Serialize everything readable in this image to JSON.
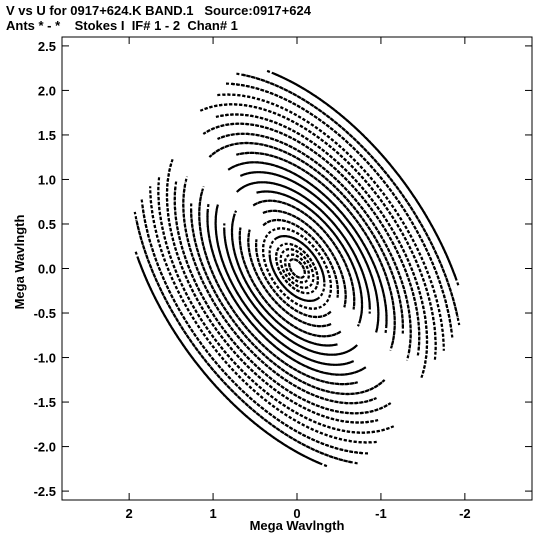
{
  "header": {
    "line1": "V vs U for 0917+624.K BAND.1   Source:0917+624",
    "line2": "Ants * - *    Stokes I  IF# 1 - 2  Chan# 1"
  },
  "chart_data": {
    "type": "scatter",
    "xlabel": "Mega Wavlngth",
    "ylabel": "Mega Wavlngth",
    "xlim": [
      2.8,
      -2.8
    ],
    "ylim": [
      -2.6,
      2.6
    ],
    "x_reversed": true,
    "grid": false,
    "legend": "none",
    "xticks": [
      2,
      1,
      0,
      -1,
      -2
    ],
    "xtick_labels": [
      "2",
      "1",
      "0",
      "-1",
      "-2"
    ],
    "yticks": [
      2.5,
      2.0,
      1.5,
      1.0,
      0.5,
      0.0,
      -0.5,
      -1.0,
      -1.5,
      -2.0,
      -2.5
    ],
    "ytick_labels": [
      "2.5",
      "2.0",
      "1.5",
      "1.0",
      "0.5",
      "0.0",
      "-0.5",
      "-1.0",
      "-1.5",
      "-2.0",
      "-2.5"
    ],
    "marker_color": "#000000",
    "tracks": [
      {
        "a": 0.12,
        "b": 0.07,
        "theta": 0.9,
        "start": 0.0,
        "end": 5.8
      },
      {
        "a": 0.18,
        "b": 0.11,
        "theta": 0.9,
        "start": 0.4,
        "end": 5.9
      },
      {
        "a": 0.25,
        "b": 0.15,
        "theta": 0.9,
        "start": 0.2,
        "end": 5.4
      },
      {
        "a": 0.32,
        "b": 0.19,
        "theta": 0.9,
        "start": 0.6,
        "end": 6.0
      },
      {
        "a": 0.42,
        "b": 0.25,
        "theta": 0.9,
        "start": 0.1,
        "end": 5.6
      },
      {
        "a": 0.52,
        "b": 0.31,
        "theta": 0.9,
        "start": 0.3,
        "end": 5.9
      },
      {
        "a": 0.63,
        "b": 0.37,
        "theta": 0.9,
        "start": 0.0,
        "end": 2.6
      },
      {
        "a": 0.63,
        "b": 0.37,
        "theta": 0.9,
        "start": 3.1,
        "end": 5.8
      },
      {
        "a": 0.75,
        "b": 0.44,
        "theta": 0.9,
        "start": 0.2,
        "end": 2.7
      },
      {
        "a": 0.75,
        "b": 0.44,
        "theta": 0.9,
        "start": 3.3,
        "end": 5.9
      },
      {
        "a": 0.88,
        "b": 0.52,
        "theta": 0.9,
        "start": 0.1,
        "end": 2.6
      },
      {
        "a": 0.88,
        "b": 0.52,
        "theta": 0.9,
        "start": 3.2,
        "end": 5.8
      },
      {
        "a": 1.0,
        "b": 0.59,
        "theta": 0.9,
        "start": 0.3,
        "end": 2.8
      },
      {
        "a": 1.0,
        "b": 0.59,
        "theta": 0.9,
        "start": 3.4,
        "end": 6.0
      },
      {
        "a": 1.12,
        "b": 0.66,
        "theta": 0.9,
        "start": 0.0,
        "end": 2.5
      },
      {
        "a": 1.12,
        "b": 0.66,
        "theta": 0.9,
        "start": 3.1,
        "end": 5.7
      },
      {
        "a": 1.25,
        "b": 0.74,
        "theta": 0.9,
        "start": 0.2,
        "end": 2.7
      },
      {
        "a": 1.25,
        "b": 0.74,
        "theta": 0.9,
        "start": 3.3,
        "end": 5.9
      },
      {
        "a": 1.38,
        "b": 0.81,
        "theta": 0.9,
        "start": 0.1,
        "end": 2.6
      },
      {
        "a": 1.38,
        "b": 0.81,
        "theta": 0.9,
        "start": 3.2,
        "end": 5.8
      },
      {
        "a": 1.5,
        "b": 0.89,
        "theta": 0.9,
        "start": 0.3,
        "end": 2.8
      },
      {
        "a": 1.5,
        "b": 0.89,
        "theta": 0.9,
        "start": 3.4,
        "end": 5.9
      },
      {
        "a": 1.63,
        "b": 0.96,
        "theta": 0.9,
        "start": 0.0,
        "end": 2.5
      },
      {
        "a": 1.63,
        "b": 0.96,
        "theta": 0.9,
        "start": 3.1,
        "end": 5.7
      },
      {
        "a": 1.75,
        "b": 1.03,
        "theta": 0.9,
        "start": 0.2,
        "end": 2.7
      },
      {
        "a": 1.75,
        "b": 1.03,
        "theta": 0.9,
        "start": 3.3,
        "end": 5.9
      },
      {
        "a": 1.88,
        "b": 1.11,
        "theta": 0.9,
        "start": 0.1,
        "end": 2.6
      },
      {
        "a": 1.88,
        "b": 1.11,
        "theta": 0.9,
        "start": 3.2,
        "end": 5.8
      },
      {
        "a": 2.0,
        "b": 1.18,
        "theta": 0.9,
        "start": 0.3,
        "end": 2.8
      },
      {
        "a": 2.0,
        "b": 1.18,
        "theta": 0.9,
        "start": 3.4,
        "end": 5.9
      },
      {
        "a": 2.13,
        "b": 1.26,
        "theta": 0.9,
        "start": 0.2,
        "end": 2.6
      },
      {
        "a": 2.13,
        "b": 1.26,
        "theta": 0.9,
        "start": 3.3,
        "end": 5.7
      },
      {
        "a": 2.26,
        "b": 1.33,
        "theta": 0.9,
        "start": 0.4,
        "end": 2.5
      },
      {
        "a": 2.26,
        "b": 1.33,
        "theta": 0.9,
        "start": 3.5,
        "end": 5.6
      },
      {
        "a": 2.4,
        "b": 1.42,
        "theta": 0.9,
        "start": 0.5,
        "end": 2.4
      },
      {
        "a": 2.4,
        "b": 1.42,
        "theta": 0.9,
        "start": 3.6,
        "end": 5.5
      },
      {
        "a": 2.55,
        "b": 1.5,
        "theta": 0.9,
        "start": 0.6,
        "end": 2.3
      },
      {
        "a": 2.55,
        "b": 1.5,
        "theta": 0.9,
        "start": 3.7,
        "end": 5.4
      },
      {
        "a": 2.7,
        "b": 1.6,
        "theta": 0.9,
        "start": 0.8,
        "end": 2.1
      },
      {
        "a": 2.7,
        "b": 1.6,
        "theta": 0.9,
        "start": 3.9,
        "end": 5.2
      }
    ]
  }
}
